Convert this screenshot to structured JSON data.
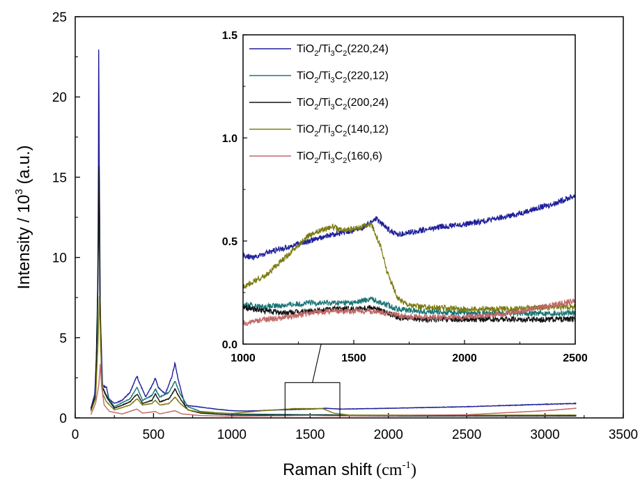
{
  "chart_data": [
    {
      "type": "line",
      "role": "main",
      "xlabel": "Raman shift",
      "xlabel_unit_base": "(cm",
      "xlabel_unit_exp": "-1",
      "xlabel_unit_close": ")",
      "ylabel_base": "Intensity / 10",
      "ylabel_exp": "3",
      "ylabel_unit": " (a.u.)",
      "xlim": [
        0,
        3500
      ],
      "ylim": [
        0,
        25
      ],
      "xticks": [
        "0",
        "500",
        "1000",
        "1500",
        "2000",
        "2500",
        "3000",
        "3500"
      ],
      "yticks": [
        "0",
        "5",
        "10",
        "15",
        "20",
        "25"
      ],
      "zoom_box": {
        "x": [
          1340,
          1690
        ],
        "y": [
          0,
          2.2
        ]
      },
      "series": [
        {
          "name": "TiO2/Ti3C2(220,24)",
          "color": "#1f1f9a",
          "points": [
            [
              100,
              0.6
            ],
            [
              125,
              1.5
            ],
            [
              140,
              5.0
            ],
            [
              147,
              12.0
            ],
            [
              150,
              23.0
            ],
            [
              153,
              17.0
            ],
            [
              160,
              6.5
            ],
            [
              175,
              2.0
            ],
            [
              200,
              1.9
            ],
            [
              215,
              1.2
            ],
            [
              250,
              0.9
            ],
            [
              300,
              1.1
            ],
            [
              350,
              1.6
            ],
            [
              380,
              2.3
            ],
            [
              395,
              2.6
            ],
            [
              410,
              2.2
            ],
            [
              450,
              1.3
            ],
            [
              490,
              2.0
            ],
            [
              512,
              2.5
            ],
            [
              530,
              1.9
            ],
            [
              575,
              1.5
            ],
            [
              615,
              2.5
            ],
            [
              637,
              3.4
            ],
            [
              655,
              2.5
            ],
            [
              700,
              0.8
            ],
            [
              780,
              0.7
            ],
            [
              900,
              0.55
            ],
            [
              1000,
              0.45
            ],
            [
              1100,
              0.43
            ],
            [
              1300,
              0.5
            ],
            [
              1500,
              0.55
            ],
            [
              1600,
              0.6
            ],
            [
              1700,
              0.55
            ],
            [
              2000,
              0.6
            ],
            [
              2500,
              0.7
            ],
            [
              3000,
              0.85
            ],
            [
              3200,
              0.9
            ]
          ]
        },
        {
          "name": "TiO2/Ti3C2(220,12)",
          "color": "#1a7575",
          "points": [
            [
              100,
              0.5
            ],
            [
              130,
              1.5
            ],
            [
              145,
              9.0
            ],
            [
              152,
              14.5
            ],
            [
              158,
              7.0
            ],
            [
              170,
              2.0
            ],
            [
              200,
              1.4
            ],
            [
              250,
              0.7
            ],
            [
              350,
              1.2
            ],
            [
              395,
              1.9
            ],
            [
              430,
              1.1
            ],
            [
              490,
              1.4
            ],
            [
              512,
              1.8
            ],
            [
              540,
              1.3
            ],
            [
              600,
              1.6
            ],
            [
              637,
              2.3
            ],
            [
              670,
              1.5
            ],
            [
              720,
              0.7
            ],
            [
              800,
              0.4
            ],
            [
              1000,
              0.25
            ],
            [
              1500,
              0.2
            ],
            [
              1600,
              0.2
            ],
            [
              1800,
              0.16
            ],
            [
              2500,
              0.15
            ],
            [
              3200,
              0.16
            ]
          ]
        },
        {
          "name": "TiO2/Ti3C2(200,24)",
          "color": "#111111",
          "points": [
            [
              100,
              0.5
            ],
            [
              130,
              1.4
            ],
            [
              145,
              8.0
            ],
            [
              153,
              16.5
            ],
            [
              158,
              8.0
            ],
            [
              170,
              2.0
            ],
            [
              200,
              1.3
            ],
            [
              250,
              0.6
            ],
            [
              350,
              1.0
            ],
            [
              395,
              1.5
            ],
            [
              430,
              0.9
            ],
            [
              490,
              1.1
            ],
            [
              512,
              1.5
            ],
            [
              540,
              1.0
            ],
            [
              600,
              1.2
            ],
            [
              637,
              1.8
            ],
            [
              670,
              1.2
            ],
            [
              720,
              0.5
            ],
            [
              800,
              0.3
            ],
            [
              1000,
              0.18
            ],
            [
              1500,
              0.17
            ],
            [
              1600,
              0.18
            ],
            [
              1800,
              0.12
            ],
            [
              2500,
              0.12
            ],
            [
              3200,
              0.12
            ]
          ]
        },
        {
          "name": "TiO2/Ti3C2(140,12)",
          "color": "#7a7a10",
          "points": [
            [
              100,
              0.4
            ],
            [
              130,
              1.2
            ],
            [
              145,
              4.5
            ],
            [
              155,
              7.8
            ],
            [
              162,
              4.5
            ],
            [
              175,
              1.5
            ],
            [
              200,
              1.0
            ],
            [
              250,
              0.5
            ],
            [
              350,
              0.8
            ],
            [
              395,
              1.2
            ],
            [
              430,
              0.8
            ],
            [
              490,
              0.9
            ],
            [
              512,
              1.1
            ],
            [
              540,
              0.8
            ],
            [
              600,
              0.9
            ],
            [
              637,
              1.3
            ],
            [
              670,
              0.9
            ],
            [
              720,
              0.5
            ],
            [
              800,
              0.35
            ],
            [
              1000,
              0.28
            ],
            [
              1200,
              0.45
            ],
            [
              1400,
              0.58
            ],
            [
              1580,
              0.58
            ],
            [
              1650,
              0.3
            ],
            [
              1750,
              0.18
            ],
            [
              2500,
              0.17
            ],
            [
              3200,
              0.18
            ]
          ]
        },
        {
          "name": "TiO2/Ti3C2(160,6)",
          "color": "#c06868",
          "points": [
            [
              100,
              0.2
            ],
            [
              130,
              0.9
            ],
            [
              150,
              2.0
            ],
            [
              160,
              3.3
            ],
            [
              168,
              2.0
            ],
            [
              185,
              0.8
            ],
            [
              220,
              0.4
            ],
            [
              300,
              0.25
            ],
            [
              395,
              0.55
            ],
            [
              430,
              0.3
            ],
            [
              512,
              0.4
            ],
            [
              540,
              0.25
            ],
            [
              637,
              0.45
            ],
            [
              680,
              0.25
            ],
            [
              800,
              0.15
            ],
            [
              1000,
              0.1
            ],
            [
              1500,
              0.15
            ],
            [
              1700,
              0.12
            ],
            [
              2000,
              0.15
            ],
            [
              2500,
              0.2
            ],
            [
              3000,
              0.45
            ],
            [
              3200,
              0.6
            ]
          ]
        }
      ]
    },
    {
      "type": "line",
      "role": "inset",
      "xlim": [
        1000,
        2500
      ],
      "ylim": [
        0,
        1.5
      ],
      "xticks": [
        "1000",
        "1500",
        "2000",
        "2500"
      ],
      "yticks": [
        "0.0",
        "0.5",
        "1.0",
        "1.5"
      ],
      "legend_position": "top-left",
      "legend": [
        {
          "name": "TiO2/Ti3C2(220,24)",
          "pre": "TiO",
          "s1": "2",
          "mid": "/Ti",
          "s2": "3",
          "c": "C",
          "s3": "2",
          "post": "(220,24)",
          "color": "#1f1f9a"
        },
        {
          "name": "TiO2/Ti3C2(220,12)",
          "pre": "TiO",
          "s1": "2",
          "mid": "/Ti",
          "s2": "3",
          "c": "C",
          "s3": "2",
          "post": "(220,12)",
          "color": "#1a7575"
        },
        {
          "name": "TiO2/Ti3C2(200,24)",
          "pre": "TiO",
          "s1": "2",
          "mid": "/Ti",
          "s2": "3",
          "c": "C",
          "s3": "2",
          "post": "(200,24)",
          "color": "#111111"
        },
        {
          "name": "TiO2/Ti3C2(140,12)",
          "pre": "TiO",
          "s1": "2",
          "mid": "/Ti",
          "s2": "3",
          "c": "C",
          "s3": "2",
          "post": "(140,12)",
          "color": "#7a7a10"
        },
        {
          "name": "TiO2/Ti3C2(160,6)",
          "pre": "TiO",
          "s1": "2",
          "mid": "/Ti",
          "s2": "3",
          "c": "C",
          "s3": "2",
          "post": "(160,6)",
          "color": "#c06868"
        }
      ],
      "series": [
        {
          "name": "TiO2/Ti3C2(220,24)",
          "color": "#1f1f9a",
          "points": [
            [
              1000,
              0.43
            ],
            [
              1050,
              0.42
            ],
            [
              1100,
              0.44
            ],
            [
              1200,
              0.47
            ],
            [
              1300,
              0.5
            ],
            [
              1400,
              0.53
            ],
            [
              1500,
              0.55
            ],
            [
              1550,
              0.57
            ],
            [
              1600,
              0.61
            ],
            [
              1650,
              0.56
            ],
            [
              1700,
              0.53
            ],
            [
              1800,
              0.55
            ],
            [
              1900,
              0.57
            ],
            [
              2000,
              0.58
            ],
            [
              2100,
              0.6
            ],
            [
              2200,
              0.62
            ],
            [
              2300,
              0.65
            ],
            [
              2400,
              0.68
            ],
            [
              2500,
              0.72
            ]
          ]
        },
        {
          "name": "TiO2/Ti3C2(220,12)",
          "color": "#1a7575",
          "points": [
            [
              1000,
              0.19
            ],
            [
              1100,
              0.18
            ],
            [
              1200,
              0.19
            ],
            [
              1300,
              0.2
            ],
            [
              1400,
              0.2
            ],
            [
              1500,
              0.2
            ],
            [
              1580,
              0.22
            ],
            [
              1650,
              0.19
            ],
            [
              1700,
              0.17
            ],
            [
              1800,
              0.16
            ],
            [
              2000,
              0.15
            ],
            [
              2200,
              0.15
            ],
            [
              2400,
              0.15
            ],
            [
              2500,
              0.15
            ]
          ]
        },
        {
          "name": "TiO2/Ti3C2(200,24)",
          "color": "#111111",
          "points": [
            [
              1000,
              0.18
            ],
            [
              1100,
              0.16
            ],
            [
              1200,
              0.15
            ],
            [
              1300,
              0.16
            ],
            [
              1400,
              0.17
            ],
            [
              1500,
              0.17
            ],
            [
              1580,
              0.18
            ],
            [
              1650,
              0.15
            ],
            [
              1700,
              0.13
            ],
            [
              1800,
              0.12
            ],
            [
              2000,
              0.12
            ],
            [
              2200,
              0.12
            ],
            [
              2400,
              0.12
            ],
            [
              2500,
              0.12
            ]
          ]
        },
        {
          "name": "TiO2/Ti3C2(140,12)",
          "color": "#7a7a10",
          "points": [
            [
              1000,
              0.28
            ],
            [
              1100,
              0.33
            ],
            [
              1200,
              0.43
            ],
            [
              1300,
              0.53
            ],
            [
              1400,
              0.57
            ],
            [
              1450,
              0.55
            ],
            [
              1500,
              0.56
            ],
            [
              1580,
              0.58
            ],
            [
              1620,
              0.48
            ],
            [
              1650,
              0.35
            ],
            [
              1700,
              0.22
            ],
            [
              1750,
              0.19
            ],
            [
              1800,
              0.18
            ],
            [
              2000,
              0.17
            ],
            [
              2200,
              0.17
            ],
            [
              2400,
              0.18
            ],
            [
              2500,
              0.18
            ]
          ]
        },
        {
          "name": "TiO2/Ti3C2(160,6)",
          "color": "#c06868",
          "points": [
            [
              1000,
              0.1
            ],
            [
              1100,
              0.12
            ],
            [
              1200,
              0.13
            ],
            [
              1300,
              0.15
            ],
            [
              1400,
              0.16
            ],
            [
              1500,
              0.16
            ],
            [
              1600,
              0.16
            ],
            [
              1700,
              0.14
            ],
            [
              1800,
              0.13
            ],
            [
              1900,
              0.13
            ],
            [
              2000,
              0.13
            ],
            [
              2100,
              0.14
            ],
            [
              2200,
              0.15
            ],
            [
              2300,
              0.17
            ],
            [
              2400,
              0.19
            ],
            [
              2500,
              0.21
            ]
          ]
        }
      ]
    }
  ]
}
